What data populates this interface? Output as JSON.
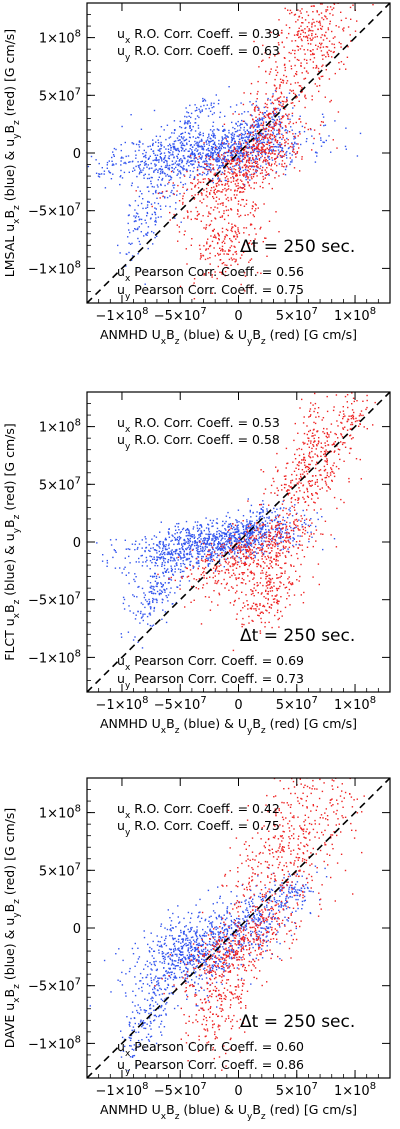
{
  "chart_data": [
    {
      "type": "scatter",
      "xlabel": "ANMHD U_xB_z (blue) & U_yB_z (red) [G cm/s]",
      "ylabel": "LMSAL u_xB_z (blue) & u_yB_z (red) [G cm/s]",
      "xlim": [
        -130000000.0,
        130000000.0
      ],
      "ylim": [
        -130000000.0,
        130000000.0
      ],
      "xticks": [
        -100000000.0,
        -50000000.0,
        0,
        50000000.0,
        100000000.0
      ],
      "yticks": [
        -100000000.0,
        -50000000.0,
        0,
        50000000.0,
        100000000.0
      ],
      "diagonal_line": "dashed y = x",
      "annotations": {
        "ro_ux": {
          "var": "x",
          "text": " R.O. Corr. Coeff. = 0.39"
        },
        "ro_uy": {
          "var": "y",
          "text": " R.O. Corr. Coeff. = 0.63"
        },
        "dt": "Δt =  250 sec.",
        "p_ux": {
          "var": "x",
          "text": " Pearson Corr. Coeff. = 0.56"
        },
        "p_uy": {
          "var": "y",
          "text": " Pearson Corr. Coeff. = 0.75"
        }
      },
      "series": [
        {
          "color": "#3355ee",
          "seed": 11,
          "clusters": [
            {
              "cx": -25000000.0,
              "cy": 0,
              "sx": 42000000.0,
              "sy": 11000000.0,
              "n": 1100,
              "slope": 0.12
            },
            {
              "cx": -75000000.0,
              "cy": -50000000.0,
              "sx": 12000000.0,
              "sy": 18000000.0,
              "n": 160,
              "slope": 1.2
            },
            {
              "cx": 12000000.0,
              "cy": 20000000.0,
              "sx": 13000000.0,
              "sy": 11000000.0,
              "n": 180,
              "slope": 0.7
            },
            {
              "cx": -35000000.0,
              "cy": 32000000.0,
              "sx": 12000000.0,
              "sy": 8000000.0,
              "n": 80,
              "slope": 0.6
            },
            {
              "cx": 36000000.0,
              "cy": 30000000.0,
              "sx": 6000000.0,
              "sy": 8000000.0,
              "n": 40,
              "slope": 0.5
            }
          ]
        },
        {
          "color": "#ee2222",
          "seed": 23,
          "clusters": [
            {
              "cx": 60000000.0,
              "cy": 95000000.0,
              "sx": 22000000.0,
              "sy": 30000000.0,
              "n": 450,
              "slope": 0.9
            },
            {
              "cx": 0,
              "cy": -15000000.0,
              "sx": 28000000.0,
              "sy": 14000000.0,
              "n": 520,
              "slope": 0.45
            },
            {
              "cx": -10000000.0,
              "cy": -75000000.0,
              "sx": 16000000.0,
              "sy": 22000000.0,
              "n": 260,
              "slope": 0.2
            },
            {
              "cx": 26000000.0,
              "cy": 20000000.0,
              "sx": 12000000.0,
              "sy": 18000000.0,
              "n": 200,
              "slope": 1.0
            }
          ]
        }
      ]
    },
    {
      "type": "scatter",
      "xlabel": "ANMHD U_xB_z (blue) & U_yB_z (red) [G cm/s]",
      "ylabel": "FLCT u_xB_z (blue) & u_yB_z (red) [G cm/s]",
      "xlim": [
        -130000000.0,
        130000000.0
      ],
      "ylim": [
        -130000000.0,
        130000000.0
      ],
      "xticks": [
        -100000000.0,
        -50000000.0,
        0,
        50000000.0,
        100000000.0
      ],
      "yticks": [
        -100000000.0,
        -50000000.0,
        0,
        50000000.0,
        100000000.0
      ],
      "diagonal_line": "dashed y = x",
      "annotations": {
        "ro_ux": {
          "var": "x",
          "text": " R.O. Corr. Coeff. = 0.53"
        },
        "ro_uy": {
          "var": "y",
          "text": " R.O. Corr. Coeff. = 0.58"
        },
        "dt": "Δt =  250 sec.",
        "p_ux": {
          "var": "x",
          "text": " Pearson Corr. Coeff. = 0.69"
        },
        "p_uy": {
          "var": "y",
          "text": " Pearson Corr. Coeff. = 0.73"
        }
      },
      "series": [
        {
          "color": "#3355ee",
          "seed": 37,
          "clusters": [
            {
              "cx": -20000000.0,
              "cy": 0,
              "sx": 36000000.0,
              "sy": 9000000.0,
              "n": 950,
              "slope": 0.15
            },
            {
              "cx": -70000000.0,
              "cy": -40000000.0,
              "sx": 13000000.0,
              "sy": 16000000.0,
              "n": 220,
              "slope": 0.9
            },
            {
              "cx": 12000000.0,
              "cy": 12000000.0,
              "sx": 12000000.0,
              "sy": 9000000.0,
              "n": 160,
              "slope": 0.6
            }
          ]
        },
        {
          "color": "#ee2222",
          "seed": 41,
          "clusters": [
            {
              "cx": 65000000.0,
              "cy": 70000000.0,
              "sx": 20000000.0,
              "sy": 24000000.0,
              "n": 420,
              "slope": 1.0
            },
            {
              "cx": 10000000.0,
              "cy": -10000000.0,
              "sx": 26000000.0,
              "sy": 13000000.0,
              "n": 480,
              "slope": 0.35
            },
            {
              "cx": 25000000.0,
              "cy": -45000000.0,
              "sx": 15000000.0,
              "sy": 15000000.0,
              "n": 220,
              "slope": 0.5
            },
            {
              "cx": 98000000.0,
              "cy": 105000000.0,
              "sx": 6000000.0,
              "sy": 6000000.0,
              "n": 40,
              "slope": 1.0
            }
          ]
        }
      ]
    },
    {
      "type": "scatter",
      "xlabel": "ANMHD U_xB_z (blue) & U_yB_z (red) [G cm/s]",
      "ylabel": "DAVE u_xB_z (blue) & u_yB_z (red) [G cm/s]",
      "xlim": [
        -130000000.0,
        130000000.0
      ],
      "ylim": [
        -130000000.0,
        130000000.0
      ],
      "xticks": [
        -100000000.0,
        -50000000.0,
        0,
        50000000.0,
        100000000.0
      ],
      "yticks": [
        -100000000.0,
        -50000000.0,
        0,
        50000000.0,
        100000000.0
      ],
      "diagonal_line": "dashed y = x",
      "annotations": {
        "ro_ux": {
          "var": "x",
          "text": " R.O. Corr. Coeff. = 0.42"
        },
        "ro_uy": {
          "var": "y",
          "text": " R.O. Corr. Coeff. = 0.75"
        },
        "dt": "Δt =  250 sec.",
        "p_ux": {
          "var": "x",
          "text": " Pearson Corr. Coeff. = 0.60"
        },
        "p_uy": {
          "var": "y",
          "text": " Pearson Corr. Coeff. = 0.86"
        }
      },
      "series": [
        {
          "color": "#3355ee",
          "seed": 53,
          "clusters": [
            {
              "cx": -35000000.0,
              "cy": -20000000.0,
              "sx": 28000000.0,
              "sy": 18000000.0,
              "n": 800,
              "slope": 0.35
            },
            {
              "cx": -80000000.0,
              "cy": -80000000.0,
              "sx": 11000000.0,
              "sy": 15000000.0,
              "n": 150,
              "slope": 1.2
            },
            {
              "cx": 20000000.0,
              "cy": 10000000.0,
              "sx": 18000000.0,
              "sy": 13000000.0,
              "n": 260,
              "slope": 0.6
            },
            {
              "cx": 50000000.0,
              "cy": 30000000.0,
              "sx": 8000000.0,
              "sy": 8000000.0,
              "n": 60,
              "slope": 0.5
            }
          ]
        },
        {
          "color": "#ee2222",
          "seed": 67,
          "clusters": [
            {
              "cx": 45000000.0,
              "cy": 70000000.0,
              "sx": 26000000.0,
              "sy": 32000000.0,
              "n": 520,
              "slope": 0.8
            },
            {
              "cx": 0,
              "cy": -15000000.0,
              "sx": 24000000.0,
              "sy": 14000000.0,
              "n": 380,
              "slope": 0.5
            },
            {
              "cx": -15000000.0,
              "cy": -65000000.0,
              "sx": 14000000.0,
              "sy": 20000000.0,
              "n": 220,
              "slope": 0.3
            }
          ]
        }
      ]
    }
  ]
}
